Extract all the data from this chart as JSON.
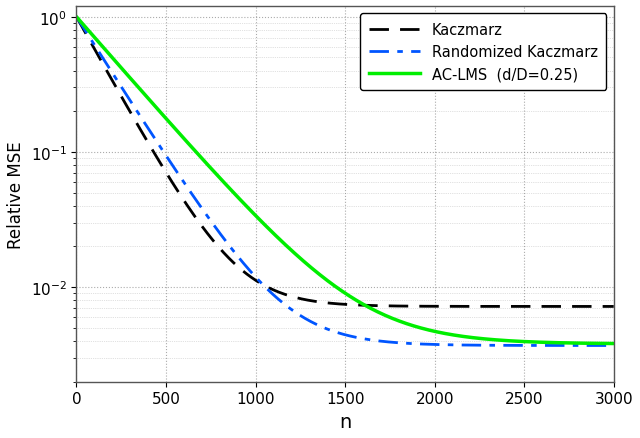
{
  "title": "",
  "xlabel": "n",
  "ylabel": "Relative MSE",
  "xlim": [
    0,
    3000
  ],
  "xticks": [
    0,
    500,
    1000,
    1500,
    2000,
    2500,
    3000
  ],
  "legend_labels": [
    "Kaczmarz",
    "Randomized Kaczmarz",
    "AC-LMS  (d/D=0.25)"
  ],
  "colors": [
    "#000000",
    "#0055FF",
    "#00EE00"
  ],
  "linestyles": [
    "dashed",
    "dashdot",
    "solid"
  ],
  "linewidths": [
    2.0,
    2.0,
    2.5
  ],
  "background_color": "#ffffff",
  "grid_color": "#888888",
  "kaczmarz": {
    "decay_rate1": 0.0055,
    "decay_rate2": 0.0008,
    "transition": 1500,
    "floor": 0.0072,
    "initial": 1.0
  },
  "rand_kaczmarz": {
    "decay_rate1": 0.0048,
    "decay_rate2": 0.0009,
    "transition": 1500,
    "floor": 0.0037,
    "initial": 1.0
  },
  "aclms": {
    "decay_rate1": 0.0035,
    "decay_rate2": 0.0008,
    "transition": 1800,
    "floor": 0.0038,
    "initial": 1.0
  }
}
